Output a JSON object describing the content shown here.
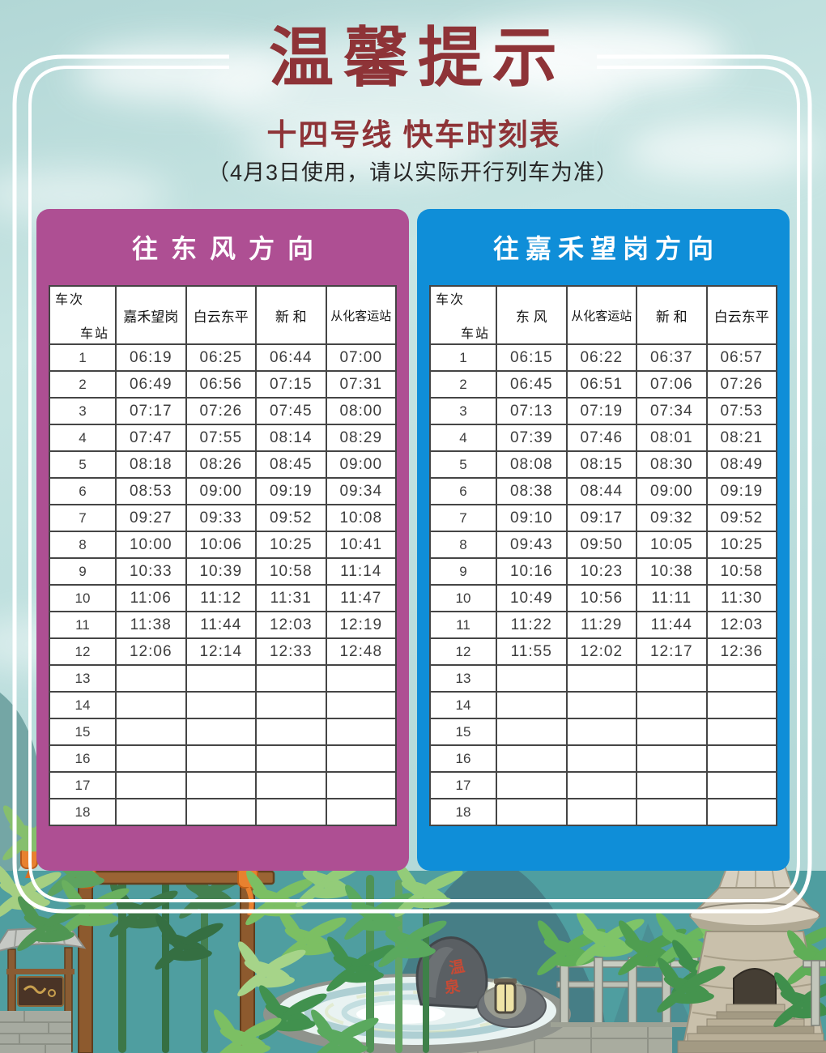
{
  "page": {
    "title": "温馨提示",
    "subtitle": "十四号线 快车时刻表",
    "note": "（4月3日使用，请以实际开行列车为准）"
  },
  "colors": {
    "panel_left": "#ae4f93",
    "panel_right": "#0f8ed8",
    "title_red": "#8e3337",
    "sky": "#bcdedd",
    "scene_teal": "#4f9ea0"
  },
  "illustration": {
    "rock_char_1": "温",
    "rock_char_2": "泉"
  },
  "tables": [
    {
      "direction": "往东风方向",
      "corner_top": "车站",
      "corner_bottom": "车次",
      "columns": [
        "嘉禾望岗",
        "白云东平",
        "新 和",
        "从化客运站"
      ],
      "rows": [
        {
          "no": "1",
          "times": [
            "06:19",
            "06:25",
            "06:44",
            "07:00"
          ]
        },
        {
          "no": "2",
          "times": [
            "06:49",
            "06:56",
            "07:15",
            "07:31"
          ]
        },
        {
          "no": "3",
          "times": [
            "07:17",
            "07:26",
            "07:45",
            "08:00"
          ]
        },
        {
          "no": "4",
          "times": [
            "07:47",
            "07:55",
            "08:14",
            "08:29"
          ]
        },
        {
          "no": "5",
          "times": [
            "08:18",
            "08:26",
            "08:45",
            "09:00"
          ]
        },
        {
          "no": "6",
          "times": [
            "08:53",
            "09:00",
            "09:19",
            "09:34"
          ]
        },
        {
          "no": "7",
          "times": [
            "09:27",
            "09:33",
            "09:52",
            "10:08"
          ]
        },
        {
          "no": "8",
          "times": [
            "10:00",
            "10:06",
            "10:25",
            "10:41"
          ]
        },
        {
          "no": "9",
          "times": [
            "10:33",
            "10:39",
            "10:58",
            "11:14"
          ]
        },
        {
          "no": "10",
          "times": [
            "11:06",
            "11:12",
            "11:31",
            "11:47"
          ]
        },
        {
          "no": "11",
          "times": [
            "11:38",
            "11:44",
            "12:03",
            "12:19"
          ]
        },
        {
          "no": "12",
          "times": [
            "12:06",
            "12:14",
            "12:33",
            "12:48"
          ]
        },
        {
          "no": "13",
          "times": [
            "",
            "",
            "",
            ""
          ]
        },
        {
          "no": "14",
          "times": [
            "",
            "",
            "",
            ""
          ]
        },
        {
          "no": "15",
          "times": [
            "",
            "",
            "",
            ""
          ]
        },
        {
          "no": "16",
          "times": [
            "",
            "",
            "",
            ""
          ]
        },
        {
          "no": "17",
          "times": [
            "",
            "",
            "",
            ""
          ]
        },
        {
          "no": "18",
          "times": [
            "",
            "",
            "",
            ""
          ]
        }
      ]
    },
    {
      "direction": "往嘉禾望岗方向",
      "corner_top": "车站",
      "corner_bottom": "车次",
      "columns": [
        "东 风",
        "从化客运站",
        "新 和",
        "白云东平"
      ],
      "rows": [
        {
          "no": "1",
          "times": [
            "06:15",
            "06:22",
            "06:37",
            "06:57"
          ]
        },
        {
          "no": "2",
          "times": [
            "06:45",
            "06:51",
            "07:06",
            "07:26"
          ]
        },
        {
          "no": "3",
          "times": [
            "07:13",
            "07:19",
            "07:34",
            "07:53"
          ]
        },
        {
          "no": "4",
          "times": [
            "07:39",
            "07:46",
            "08:01",
            "08:21"
          ]
        },
        {
          "no": "5",
          "times": [
            "08:08",
            "08:15",
            "08:30",
            "08:49"
          ]
        },
        {
          "no": "6",
          "times": [
            "08:38",
            "08:44",
            "09:00",
            "09:19"
          ]
        },
        {
          "no": "7",
          "times": [
            "09:10",
            "09:17",
            "09:32",
            "09:52"
          ]
        },
        {
          "no": "8",
          "times": [
            "09:43",
            "09:50",
            "10:05",
            "10:25"
          ]
        },
        {
          "no": "9",
          "times": [
            "10:16",
            "10:23",
            "10:38",
            "10:58"
          ]
        },
        {
          "no": "10",
          "times": [
            "10:49",
            "10:56",
            "11:11",
            "11:30"
          ]
        },
        {
          "no": "11",
          "times": [
            "11:22",
            "11:29",
            "11:44",
            "12:03"
          ]
        },
        {
          "no": "12",
          "times": [
            "11:55",
            "12:02",
            "12:17",
            "12:36"
          ]
        },
        {
          "no": "13",
          "times": [
            "",
            "",
            "",
            ""
          ]
        },
        {
          "no": "14",
          "times": [
            "",
            "",
            "",
            ""
          ]
        },
        {
          "no": "15",
          "times": [
            "",
            "",
            "",
            ""
          ]
        },
        {
          "no": "16",
          "times": [
            "",
            "",
            "",
            ""
          ]
        },
        {
          "no": "17",
          "times": [
            "",
            "",
            "",
            ""
          ]
        },
        {
          "no": "18",
          "times": [
            "",
            "",
            "",
            ""
          ]
        }
      ]
    }
  ]
}
